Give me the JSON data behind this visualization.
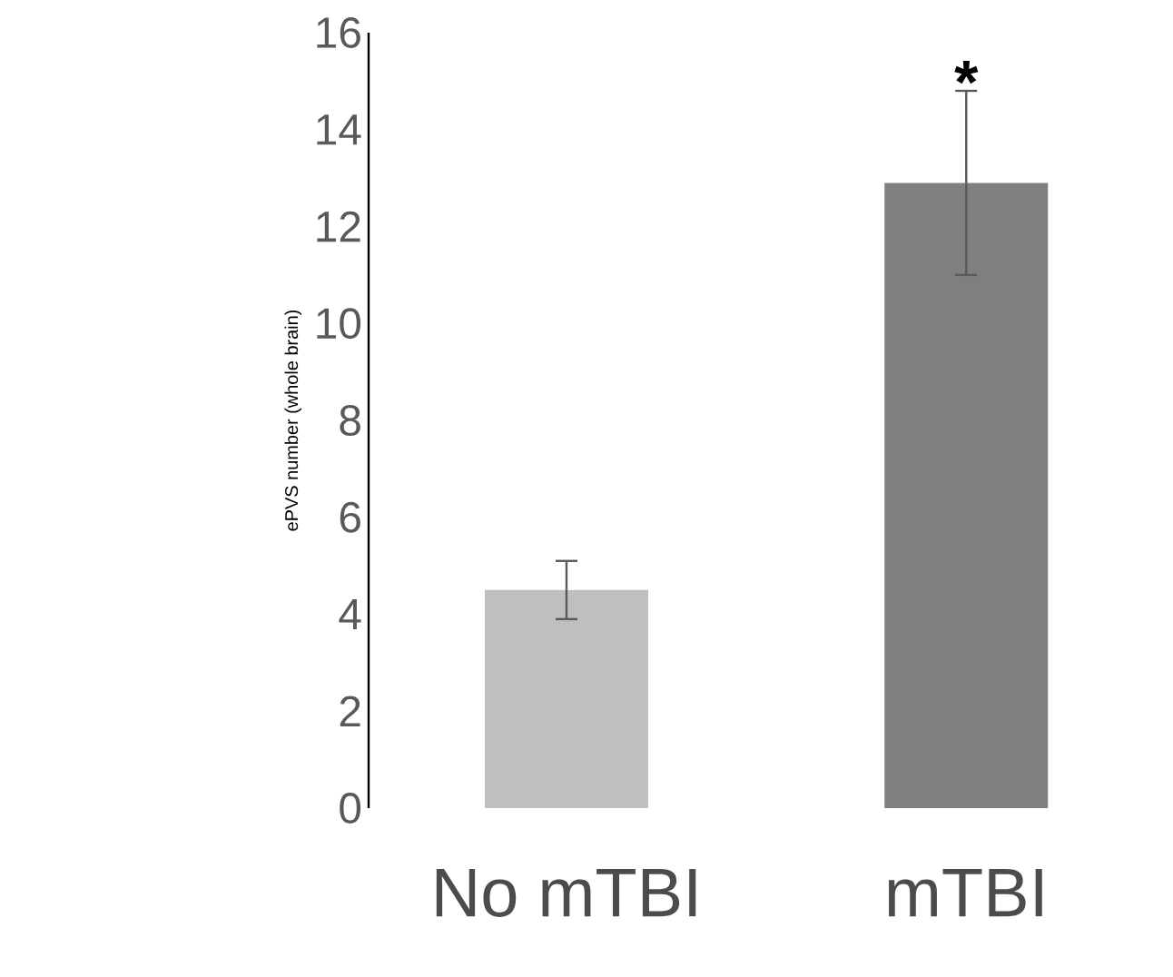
{
  "chart_data": {
    "type": "bar",
    "ylabel": "ePVS number (whole brain)",
    "categories": [
      "No mTBI",
      "mTBI"
    ],
    "values": [
      4.5,
      12.9
    ],
    "errors": [
      0.6,
      1.9
    ],
    "colors": [
      "#bfbfbf",
      "#7f7f7f"
    ],
    "ylim": [
      0,
      16
    ],
    "yticks": [
      0,
      2,
      4,
      6,
      8,
      10,
      12,
      14,
      16
    ],
    "annotations": [
      {
        "text": "*",
        "x": "mTBI",
        "y": 14.8
      }
    ]
  }
}
